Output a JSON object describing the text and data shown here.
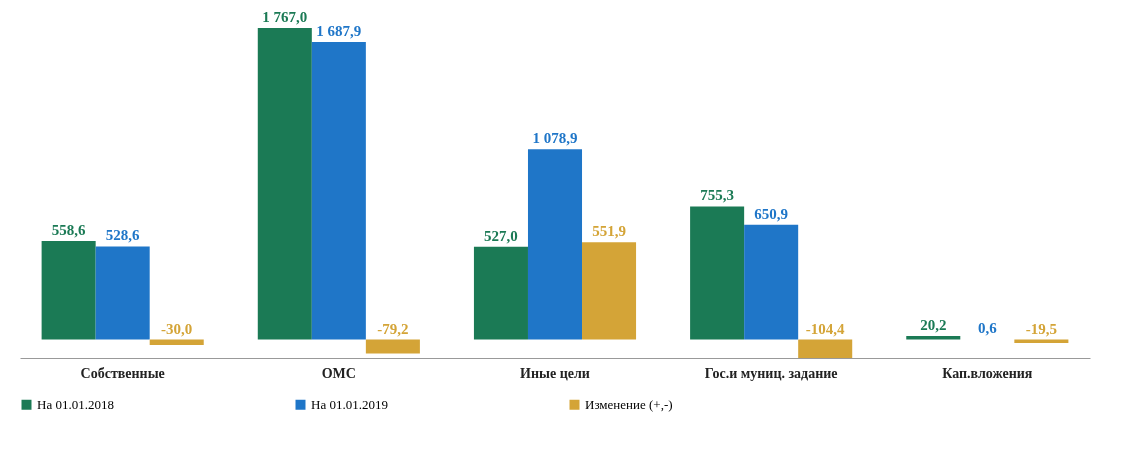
{
  "chart_data": {
    "type": "bar",
    "categories": [
      "Собственные",
      "ОМС",
      "Иные цели",
      "Гос.и муниц. задание",
      "Кап.вложения"
    ],
    "series": [
      {
        "name": "На 01.01.2018",
        "color": "#1b7a55",
        "values": [
          558.6,
          1767.0,
          527.0,
          755.3,
          20.2
        ],
        "value_labels": [
          "558,6",
          "1 767,0",
          "527,0",
          "755,3",
          "20,2"
        ]
      },
      {
        "name": "На 01.01.2019",
        "color": "#1f76c8",
        "values": [
          528.6,
          1687.9,
          1078.9,
          650.9,
          0.6
        ],
        "value_labels": [
          "528,6",
          "1 687,9",
          "1 078,9",
          "650,9",
          "0,6"
        ]
      },
      {
        "name": "Изменение (+,-)",
        "color": "#d4a437",
        "values": [
          -30.0,
          -79.2,
          551.9,
          -104.4,
          -19.5
        ],
        "value_labels": [
          "-30,0",
          "-79,2",
          "551,9",
          "-104,4",
          "-19,5"
        ]
      }
    ],
    "legend": "bottom",
    "grid": false,
    "tick_labels": "x"
  }
}
